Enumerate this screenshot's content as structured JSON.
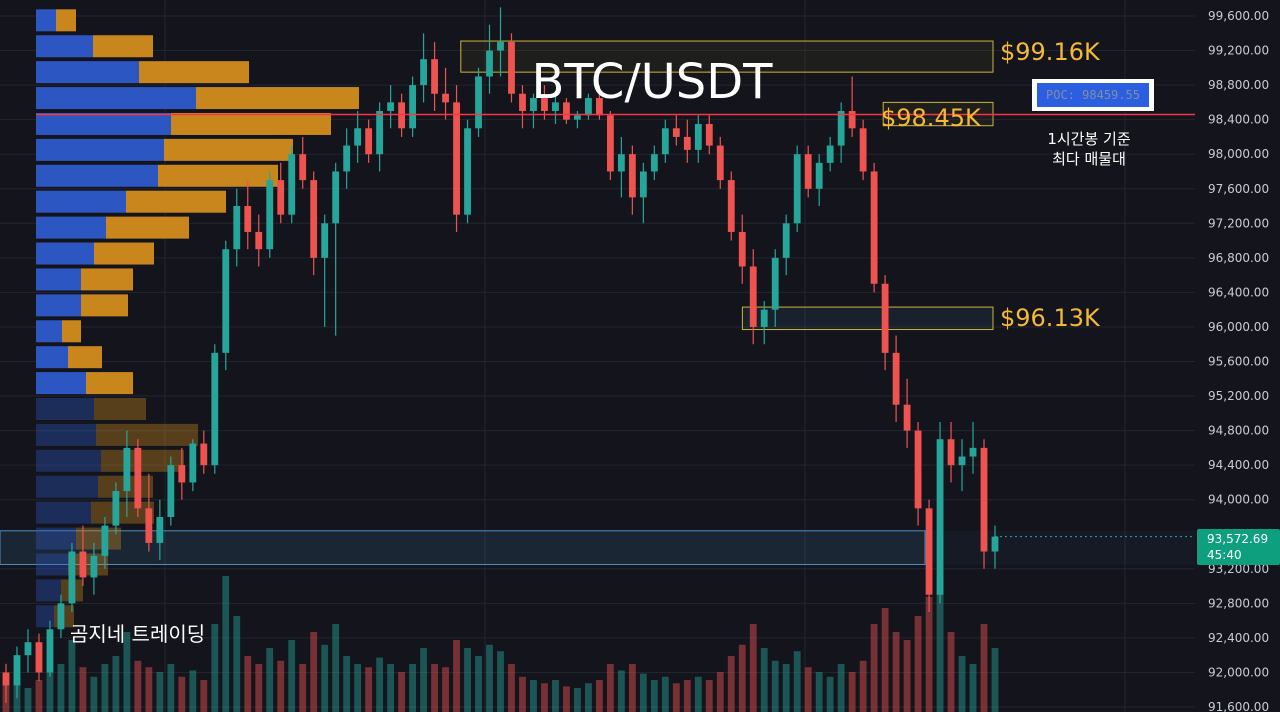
{
  "colors": {
    "background": "#14151c",
    "grid": "#22242e",
    "up": "#26a69a",
    "down": "#ef5350",
    "poc_line": "#f23645",
    "profile_buy": "#2f5ccf",
    "profile_sell": "#d8901c",
    "zone_yellow": "#c9b53a",
    "zone_blue": "#4a8fc4",
    "price_tag": "#0e9f7e",
    "callout": "#f5b935"
  },
  "header": {
    "title": "BTC/USDT"
  },
  "annotations": {
    "label_99": "$99.16K",
    "label_98": "$98.45K",
    "label_96": "$96.13K",
    "poc_box": "POC: 98459.55",
    "poc_note_line1": "1시간봉 기준",
    "poc_note_line2": "최다 매물대",
    "watermark": "곰지네 트레이딩"
  },
  "price_tag": {
    "price": "93,572.69",
    "countdown": "45:40"
  },
  "chart_data": {
    "type": "candlestick",
    "ylim": [
      91600,
      99700
    ],
    "y_ticks": [
      "99,600.00",
      "99,200.00",
      "98,800.00",
      "98,400.00",
      "98,000.00",
      "97,600.00",
      "97,200.00",
      "96,800.00",
      "96,400.00",
      "96,000.00",
      "95,600.00",
      "95,200.00",
      "94,800.00",
      "94,400.00",
      "94,000.00",
      "93,200.00",
      "92,800.00",
      "92,400.00",
      "92,000.00",
      "91,600.00"
    ],
    "poc_price": 98459.55,
    "last_price": 93572.69,
    "zones": [
      {
        "label": "$99.16K",
        "y_top": 99310,
        "y_bottom": 98950,
        "x_start": 0.36,
        "color": "yellow"
      },
      {
        "label": "$98.45K",
        "y_top": 98600,
        "y_bottom": 98330,
        "x_start": 0.69,
        "color": "yellow"
      },
      {
        "label": "$96.13K",
        "y_top": 96230,
        "y_bottom": 95970,
        "x_start": 0.58,
        "color": "yellowblue"
      },
      {
        "label": "",
        "y_top": 93640,
        "y_bottom": 93250,
        "x_start": 0.0,
        "color": "blue"
      }
    ],
    "volume_profile": [
      {
        "price": 99550,
        "buy": 20,
        "sell": 20
      },
      {
        "price": 99250,
        "buy": 57,
        "sell": 60
      },
      {
        "price": 98950,
        "buy": 103,
        "sell": 110
      },
      {
        "price": 98650,
        "buy": 160,
        "sell": 163
      },
      {
        "price": 98350,
        "buy": 135,
        "sell": 160
      },
      {
        "price": 98050,
        "buy": 128,
        "sell": 129
      },
      {
        "price": 97750,
        "buy": 122,
        "sell": 120
      },
      {
        "price": 97450,
        "buy": 90,
        "sell": 100
      },
      {
        "price": 97150,
        "buy": 70,
        "sell": 83
      },
      {
        "price": 96850,
        "buy": 58,
        "sell": 60
      },
      {
        "price": 96550,
        "buy": 45,
        "sell": 52
      },
      {
        "price": 96250,
        "buy": 45,
        "sell": 47
      },
      {
        "price": 95950,
        "buy": 26,
        "sell": 19
      },
      {
        "price": 95650,
        "buy": 32,
        "sell": 34
      },
      {
        "price": 95350,
        "buy": 50,
        "sell": 47
      },
      {
        "price": 95050,
        "buy": 58,
        "sell": 52
      },
      {
        "price": 94750,
        "buy": 60,
        "sell": 102
      },
      {
        "price": 94450,
        "buy": 65,
        "sell": 83
      },
      {
        "price": 94150,
        "buy": 62,
        "sell": 55
      },
      {
        "price": 93850,
        "buy": 55,
        "sell": 63
      },
      {
        "price": 93550,
        "buy": 40,
        "sell": 45
      },
      {
        "price": 93250,
        "buy": 32,
        "sell": 40
      },
      {
        "price": 92950,
        "buy": 25,
        "sell": 22
      },
      {
        "price": 92650,
        "buy": 18,
        "sell": 20
      }
    ],
    "ohlc": [
      [
        92000,
        92100,
        91650,
        91850
      ],
      [
        91850,
        92300,
        91700,
        92200
      ],
      [
        92200,
        92500,
        92000,
        92350
      ],
      [
        92350,
        92450,
        91900,
        92000
      ],
      [
        92000,
        92600,
        91950,
        92500
      ],
      [
        92500,
        92900,
        92400,
        92800
      ],
      [
        92800,
        93500,
        92700,
        93400
      ],
      [
        93400,
        93700,
        93000,
        93100
      ],
      [
        93100,
        93500,
        92900,
        93350
      ],
      [
        93350,
        93800,
        93200,
        93700
      ],
      [
        93700,
        94200,
        93600,
        94100
      ],
      [
        94100,
        94800,
        93800,
        94600
      ],
      [
        94600,
        94700,
        93800,
        93900
      ],
      [
        93900,
        94300,
        93400,
        93500
      ],
      [
        93500,
        94000,
        93300,
        93800
      ],
      [
        93800,
        94500,
        93700,
        94400
      ],
      [
        94400,
        94600,
        94000,
        94200
      ],
      [
        94200,
        94700,
        94100,
        94650
      ],
      [
        94650,
        94800,
        94300,
        94400
      ],
      [
        94400,
        95800,
        94300,
        95700
      ],
      [
        95700,
        97000,
        95500,
        96900
      ],
      [
        96900,
        97600,
        96700,
        97400
      ],
      [
        97400,
        97700,
        96900,
        97100
      ],
      [
        97100,
        97300,
        96700,
        96900
      ],
      [
        96900,
        97800,
        96800,
        97700
      ],
      [
        97700,
        97900,
        97200,
        97300
      ],
      [
        97300,
        98100,
        97200,
        98000
      ],
      [
        98000,
        98200,
        97600,
        97700
      ],
      [
        97700,
        97800,
        96600,
        96800
      ],
      [
        96800,
        97300,
        96000,
        97200
      ],
      [
        97200,
        97900,
        95900,
        97800
      ],
      [
        97800,
        98300,
        97600,
        98100
      ],
      [
        98100,
        98500,
        97900,
        98300
      ],
      [
        98300,
        98400,
        97900,
        98000
      ],
      [
        98000,
        98600,
        97800,
        98500
      ],
      [
        98500,
        98800,
        98300,
        98600
      ],
      [
        98600,
        98700,
        98200,
        98300
      ],
      [
        98300,
        98900,
        98200,
        98800
      ],
      [
        98800,
        99400,
        98600,
        99100
      ],
      [
        99100,
        99300,
        98500,
        98700
      ],
      [
        98700,
        99000,
        98400,
        98600
      ],
      [
        98600,
        98800,
        97100,
        97300
      ],
      [
        97300,
        98400,
        97200,
        98300
      ],
      [
        98300,
        99000,
        98200,
        98900
      ],
      [
        98900,
        99500,
        98700,
        99200
      ],
      [
        99200,
        99700,
        98900,
        99300
      ],
      [
        99300,
        99400,
        98600,
        98700
      ],
      [
        98700,
        98800,
        98300,
        98500
      ],
      [
        98500,
        98700,
        98300,
        98650
      ],
      [
        98650,
        98800,
        98400,
        98500
      ],
      [
        98500,
        98700,
        98350,
        98600
      ],
      [
        98600,
        98650,
        98350,
        98400
      ],
      [
        98400,
        98500,
        98300,
        98450
      ],
      [
        98450,
        98700,
        98400,
        98650
      ],
      [
        98650,
        98800,
        98400,
        98450
      ],
      [
        98450,
        98500,
        97700,
        97800
      ],
      [
        97800,
        98200,
        97500,
        98000
      ],
      [
        98000,
        98100,
        97300,
        97500
      ],
      [
        97500,
        97900,
        97200,
        97800
      ],
      [
        97800,
        98100,
        97700,
        98000
      ],
      [
        98000,
        98400,
        97900,
        98300
      ],
      [
        98300,
        98450,
        98100,
        98200
      ],
      [
        98200,
        98400,
        97900,
        98050
      ],
      [
        98050,
        98450,
        97900,
        98350
      ],
      [
        98350,
        98450,
        98000,
        98100
      ],
      [
        98100,
        98200,
        97600,
        97700
      ],
      [
        97700,
        97800,
        97000,
        97100
      ],
      [
        97100,
        97300,
        96500,
        96700
      ],
      [
        96700,
        96900,
        95800,
        96000
      ],
      [
        96000,
        96300,
        95800,
        96200
      ],
      [
        96200,
        96900,
        96000,
        96800
      ],
      [
        96800,
        97300,
        96600,
        97200
      ],
      [
        97200,
        98100,
        97100,
        98000
      ],
      [
        98000,
        98100,
        97500,
        97600
      ],
      [
        97600,
        98000,
        97400,
        97900
      ],
      [
        97900,
        98200,
        97800,
        98100
      ],
      [
        98100,
        98600,
        97900,
        98500
      ],
      [
        98500,
        98900,
        98200,
        98300
      ],
      [
        98300,
        98400,
        97700,
        97800
      ],
      [
        97800,
        97900,
        96400,
        96500
      ],
      [
        96500,
        96600,
        95500,
        95700
      ],
      [
        95700,
        95900,
        94900,
        95100
      ],
      [
        95100,
        95400,
        94600,
        94800
      ],
      [
        94800,
        94900,
        93700,
        93900
      ],
      [
        93900,
        94000,
        92700,
        92900
      ],
      [
        92900,
        94900,
        92800,
        94700
      ],
      [
        94700,
        94900,
        94200,
        94400
      ],
      [
        94400,
        94700,
        94100,
        94500
      ],
      [
        94500,
        94900,
        94300,
        94600
      ],
      [
        94600,
        94700,
        93200,
        93400
      ],
      [
        93400,
        93700,
        93200,
        93573
      ]
    ],
    "volumes": [
      0.18,
      0.22,
      0.15,
      0.2,
      0.25,
      0.3,
      0.45,
      0.28,
      0.22,
      0.3,
      0.35,
      0.5,
      0.32,
      0.28,
      0.25,
      0.3,
      0.22,
      0.26,
      0.2,
      0.55,
      0.85,
      0.6,
      0.35,
      0.3,
      0.4,
      0.32,
      0.45,
      0.3,
      0.5,
      0.42,
      0.55,
      0.35,
      0.3,
      0.28,
      0.34,
      0.3,
      0.25,
      0.3,
      0.4,
      0.3,
      0.28,
      0.45,
      0.4,
      0.35,
      0.42,
      0.38,
      0.3,
      0.22,
      0.2,
      0.18,
      0.2,
      0.16,
      0.15,
      0.18,
      0.2,
      0.3,
      0.26,
      0.3,
      0.24,
      0.2,
      0.22,
      0.18,
      0.2,
      0.22,
      0.2,
      0.25,
      0.35,
      0.42,
      0.55,
      0.4,
      0.32,
      0.3,
      0.38,
      0.28,
      0.25,
      0.22,
      0.3,
      0.25,
      0.32,
      0.55,
      0.65,
      0.5,
      0.45,
      0.6,
      0.72,
      0.85,
      0.5,
      0.35,
      0.3,
      0.55,
      0.4
    ]
  }
}
